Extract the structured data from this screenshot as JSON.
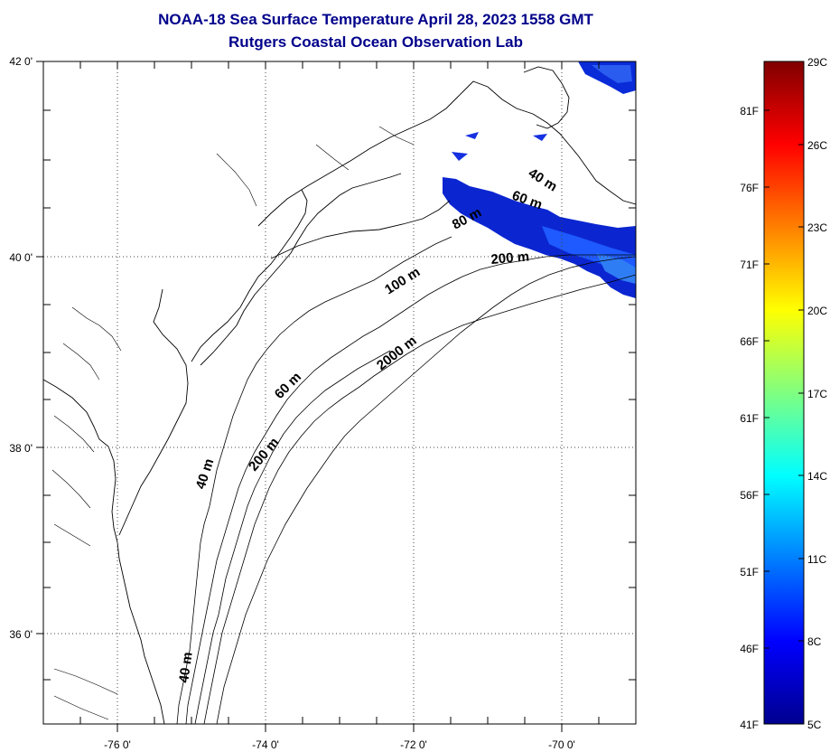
{
  "title": {
    "line1": "NOAA-18 Sea Surface Temperature April 28, 2023 1558 GMT",
    "line2": "Rutgers Coastal Ocean Observation Lab"
  },
  "map": {
    "lat_labels": [
      "42 0'",
      "40 0'",
      "38 0'",
      "36 0'"
    ],
    "lon_labels": [
      "-76 0'",
      "-74 0'",
      "-72 0'",
      "-70 0'"
    ],
    "grid": "dotted",
    "contour_labels": [
      "40 m",
      "60 m",
      "80 m",
      "200 m",
      "100 m",
      "2000 m",
      "60 m",
      "200 m",
      "40 m",
      "40 m"
    ],
    "sst_color_range": [
      "#0000c8",
      "#1e5aff"
    ]
  },
  "colorbar": {
    "fahrenheit_labels": [
      "81F",
      "76F",
      "71F",
      "66F",
      "61F",
      "56F",
      "51F",
      "46F",
      "41F"
    ],
    "celsius_labels": [
      "29C",
      "26C",
      "23C",
      "20C",
      "17C",
      "14C",
      "11C",
      "8C",
      "5C"
    ],
    "colormap": [
      "#00008f",
      "#0000ff",
      "#0080ff",
      "#00ffff",
      "#80ff80",
      "#ffff00",
      "#ff8000",
      "#ff0000",
      "#800000"
    ]
  }
}
